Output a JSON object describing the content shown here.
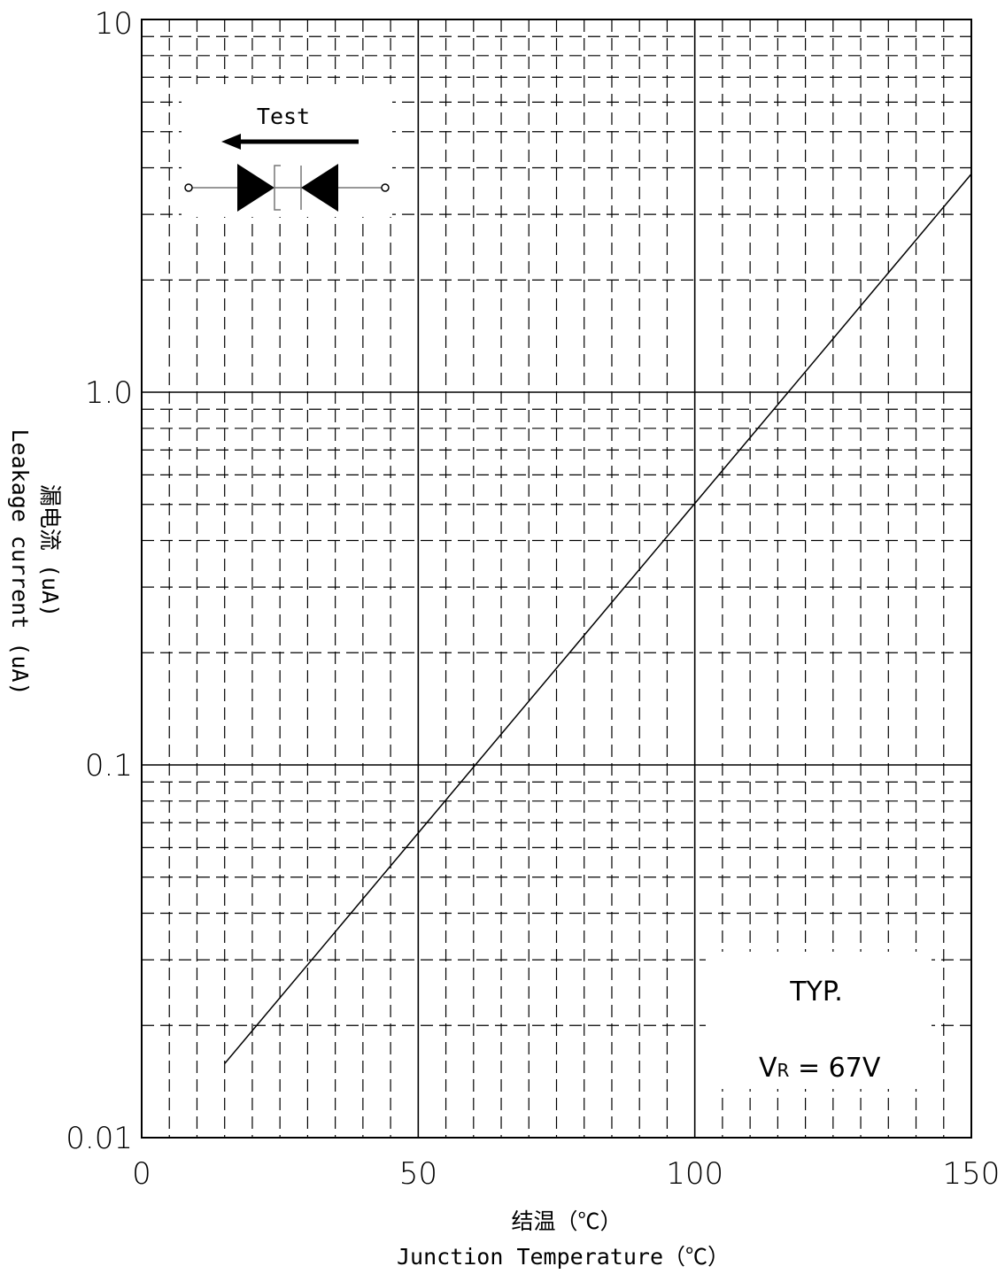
{
  "chart_data": {
    "type": "line",
    "x_axis": {
      "label_cn": "结温（℃）",
      "label_en": "Junction Temperature（℃）",
      "range": [
        0,
        150
      ],
      "major_ticks": [
        0,
        50,
        100,
        150
      ],
      "tick_labels": [
        "0",
        "50",
        "100",
        "150"
      ],
      "minor_step": 5
    },
    "y_axis": {
      "label_cn": "漏电流 (uA)",
      "label_en": "Leakage current (uA)",
      "scale": "log",
      "range": [
        0.01,
        10
      ],
      "major_ticks": [
        0.01,
        0.1,
        1,
        10
      ],
      "tick_labels": [
        "0.01",
        "0.1",
        "1.0",
        "10"
      ]
    },
    "series": [
      {
        "x": [
          15,
          150
        ],
        "y": [
          0.0158,
          3.85
        ]
      }
    ],
    "grid": true,
    "annotations": {
      "test_label": "Test",
      "typ_label": "TYP.",
      "vr_main": "V",
      "vr_sub": "R",
      "vr_value": " = 67V"
    }
  }
}
